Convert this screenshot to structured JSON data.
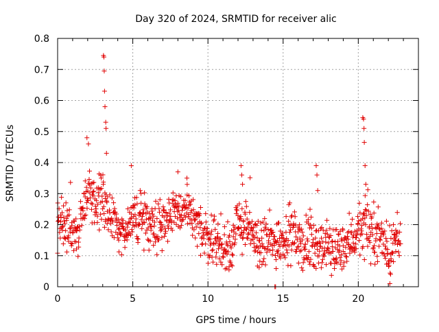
{
  "chart_data": {
    "type": "scatter",
    "title": "Day 320 of 2024, SRMTID for receiver alic",
    "xlabel": "GPS time / hours",
    "ylabel": "SRMTID / TECUs",
    "xlim": [
      0,
      24
    ],
    "ylim": [
      0,
      0.8
    ],
    "xticks": [
      0,
      5,
      10,
      15,
      20
    ],
    "xtick_labels": [
      "0",
      "5",
      "10",
      "15",
      "20"
    ],
    "yticks": [
      0,
      0.1,
      0.2,
      0.3,
      0.4,
      0.5,
      0.6,
      0.7,
      0.8
    ],
    "ytick_labels": [
      "0",
      "0.1",
      "0.2",
      "0.3",
      "0.4",
      "0.5",
      "0.6",
      "0.7",
      "0.8"
    ],
    "grid": true,
    "marker": "+",
    "color": "#e00000",
    "data_span_hours": [
      0,
      22.8
    ],
    "trend": [
      {
        "x": 0.0,
        "y": 0.2
      },
      {
        "x": 0.5,
        "y": 0.2
      },
      {
        "x": 1.0,
        "y": 0.17
      },
      {
        "x": 1.5,
        "y": 0.2
      },
      {
        "x": 2.0,
        "y": 0.32
      },
      {
        "x": 2.5,
        "y": 0.28
      },
      {
        "x": 3.0,
        "y": 0.26
      },
      {
        "x": 3.5,
        "y": 0.22
      },
      {
        "x": 4.0,
        "y": 0.2
      },
      {
        "x": 4.5,
        "y": 0.17
      },
      {
        "x": 5.0,
        "y": 0.21
      },
      {
        "x": 5.5,
        "y": 0.23
      },
      {
        "x": 6.0,
        "y": 0.22
      },
      {
        "x": 6.5,
        "y": 0.2
      },
      {
        "x": 7.0,
        "y": 0.21
      },
      {
        "x": 7.5,
        "y": 0.23
      },
      {
        "x": 8.0,
        "y": 0.24
      },
      {
        "x": 8.5,
        "y": 0.25
      },
      {
        "x": 9.0,
        "y": 0.21
      },
      {
        "x": 9.5,
        "y": 0.18
      },
      {
        "x": 10.0,
        "y": 0.16
      },
      {
        "x": 10.5,
        "y": 0.15
      },
      {
        "x": 11.0,
        "y": 0.11
      },
      {
        "x": 11.5,
        "y": 0.13
      },
      {
        "x": 12.0,
        "y": 0.2
      },
      {
        "x": 12.5,
        "y": 0.21
      },
      {
        "x": 13.0,
        "y": 0.16
      },
      {
        "x": 13.5,
        "y": 0.13
      },
      {
        "x": 14.0,
        "y": 0.15
      },
      {
        "x": 14.5,
        "y": 0.14
      },
      {
        "x": 15.0,
        "y": 0.16
      },
      {
        "x": 15.5,
        "y": 0.17
      },
      {
        "x": 16.0,
        "y": 0.15
      },
      {
        "x": 16.5,
        "y": 0.13
      },
      {
        "x": 17.0,
        "y": 0.15
      },
      {
        "x": 17.5,
        "y": 0.12
      },
      {
        "x": 18.0,
        "y": 0.13
      },
      {
        "x": 18.5,
        "y": 0.11
      },
      {
        "x": 19.0,
        "y": 0.14
      },
      {
        "x": 19.5,
        "y": 0.15
      },
      {
        "x": 20.0,
        "y": 0.18
      },
      {
        "x": 20.5,
        "y": 0.19
      },
      {
        "x": 21.0,
        "y": 0.16
      },
      {
        "x": 21.5,
        "y": 0.17
      },
      {
        "x": 22.0,
        "y": 0.11
      },
      {
        "x": 22.5,
        "y": 0.15
      },
      {
        "x": 22.8,
        "y": 0.15
      }
    ],
    "spikes": [
      {
        "x": 1.95,
        "y": 0.48
      },
      {
        "x": 2.05,
        "y": 0.46
      },
      {
        "x": 2.9,
        "y": 0.35
      },
      {
        "x": 3.05,
        "y": 0.745
      },
      {
        "x": 3.08,
        "y": 0.74
      },
      {
        "x": 3.1,
        "y": 0.695
      },
      {
        "x": 3.12,
        "y": 0.63
      },
      {
        "x": 3.15,
        "y": 0.58
      },
      {
        "x": 3.2,
        "y": 0.53
      },
      {
        "x": 3.22,
        "y": 0.51
      },
      {
        "x": 3.25,
        "y": 0.43
      },
      {
        "x": 4.9,
        "y": 0.39
      },
      {
        "x": 8.0,
        "y": 0.37
      },
      {
        "x": 8.6,
        "y": 0.35
      },
      {
        "x": 12.2,
        "y": 0.39
      },
      {
        "x": 12.25,
        "y": 0.36
      },
      {
        "x": 12.3,
        "y": 0.33
      },
      {
        "x": 14.45,
        "y": 0.0
      },
      {
        "x": 14.5,
        "y": 0.0
      },
      {
        "x": 17.2,
        "y": 0.39
      },
      {
        "x": 17.25,
        "y": 0.36
      },
      {
        "x": 17.3,
        "y": 0.31
      },
      {
        "x": 20.3,
        "y": 0.545
      },
      {
        "x": 20.35,
        "y": 0.54
      },
      {
        "x": 20.38,
        "y": 0.51
      },
      {
        "x": 20.4,
        "y": 0.465
      },
      {
        "x": 20.45,
        "y": 0.39
      },
      {
        "x": 20.5,
        "y": 0.33
      },
      {
        "x": 22.1,
        "y": 0.01
      },
      {
        "x": 22.15,
        "y": 0.04
      }
    ],
    "noise_amplitude": 0.05,
    "point_count": 1100
  }
}
